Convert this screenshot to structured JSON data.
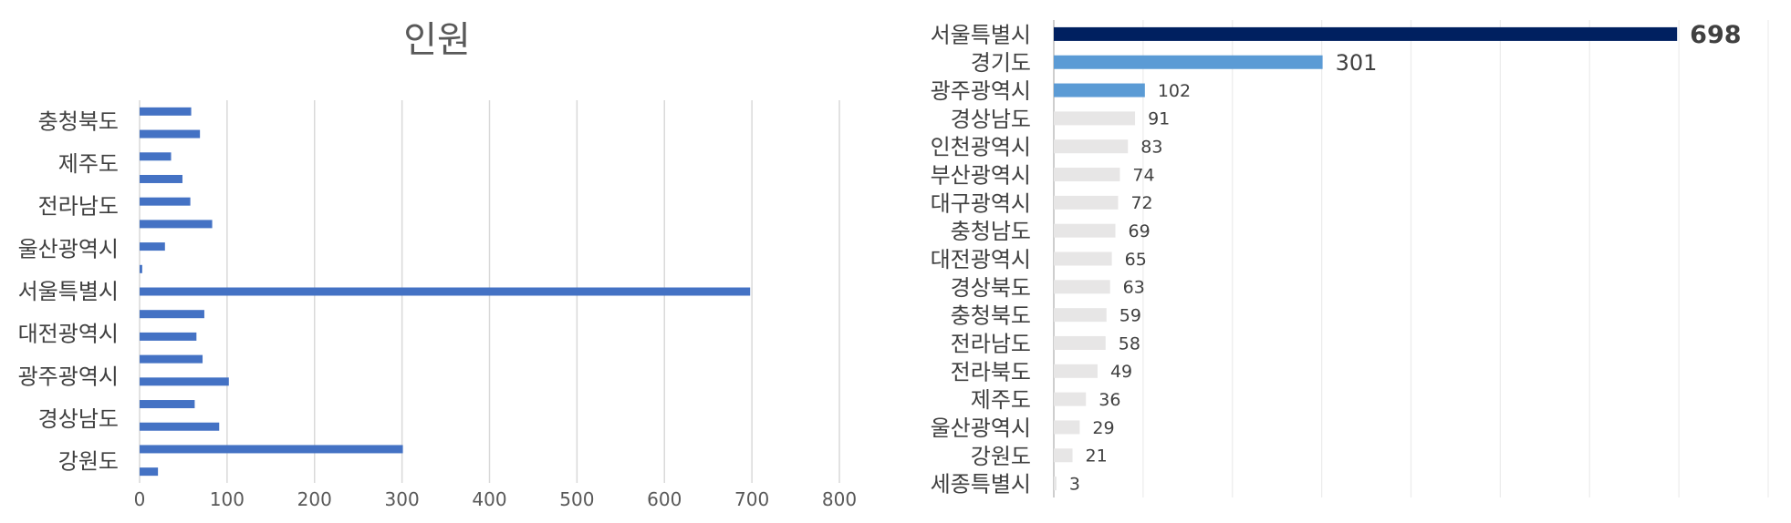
{
  "colors": {
    "left_bar": "#4472c4",
    "grid": "#d9d9d9",
    "right_top": "#002060",
    "right_highlight": "#5b9bd5",
    "right_rest": "#e7e6e6",
    "axis_line": "#bfbfbf"
  },
  "chart_data": [
    {
      "type": "bar",
      "orientation": "horizontal",
      "title": "인원",
      "xlim": [
        0,
        800
      ],
      "xticks": [
        "0",
        "100",
        "200",
        "300",
        "400",
        "500",
        "600",
        "700",
        "800"
      ],
      "grid": true,
      "category_labels": [
        "충청북도",
        "제주도",
        "전라남도",
        "울산광역시",
        "서울특별시",
        "대전광역시",
        "광주광역시",
        "경상남도",
        "강원도"
      ],
      "values": [
        59,
        69,
        36,
        49,
        58,
        83,
        29,
        3,
        698,
        74,
        65,
        72,
        102,
        63,
        91,
        301,
        21
      ]
    },
    {
      "type": "bar",
      "orientation": "horizontal",
      "sorted": "descending",
      "xlim": [
        0,
        800
      ],
      "grid": true,
      "categories": [
        "서울특별시",
        "경기도",
        "광주광역시",
        "경상남도",
        "인천광역시",
        "부산광역시",
        "대구광역시",
        "충청남도",
        "대전광역시",
        "경상북도",
        "충청북도",
        "전라남도",
        "전라북도",
        "제주도",
        "울산광역시",
        "강원도",
        "세종특별시"
      ],
      "values": [
        698,
        301,
        102,
        91,
        83,
        74,
        72,
        69,
        65,
        63,
        59,
        58,
        49,
        36,
        29,
        21,
        3
      ],
      "value_labels": [
        "698",
        "301",
        "102",
        "91",
        "83",
        "74",
        "72",
        "69",
        "65",
        "63",
        "59",
        "58",
        "49",
        "36",
        "29",
        "21",
        "3"
      ]
    }
  ]
}
